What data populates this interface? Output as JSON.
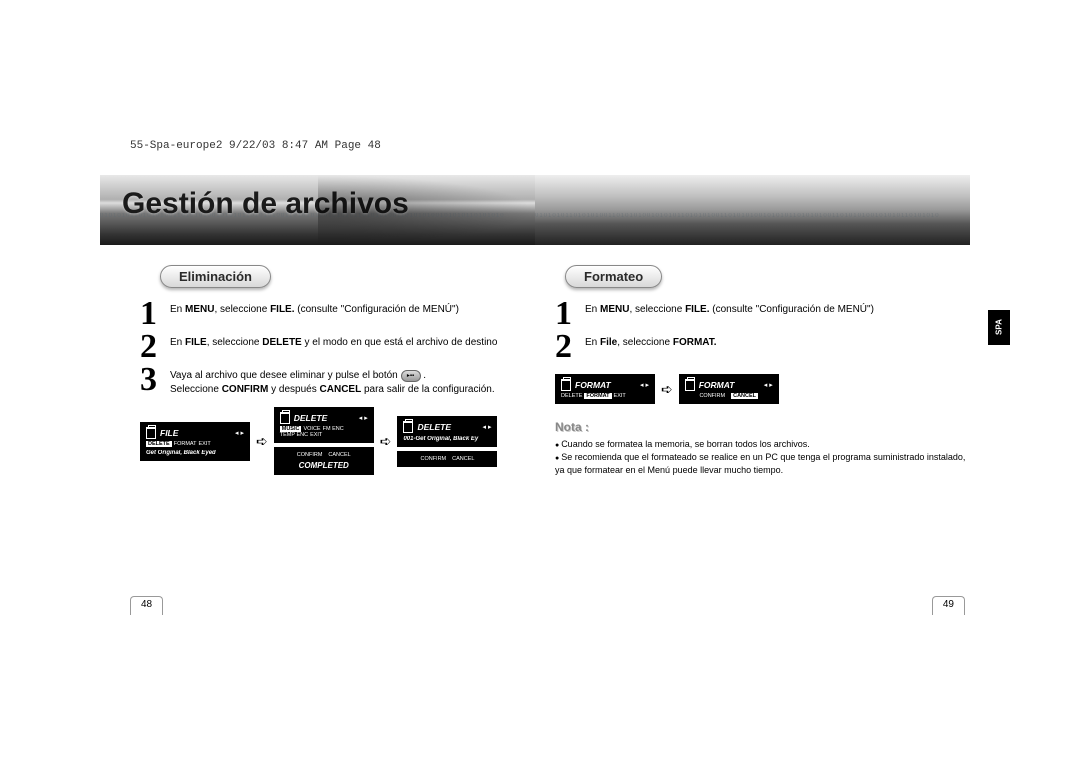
{
  "print_meta": "55-Spa-europe2  9/22/03  8:47 AM  Page 48",
  "banner_title": "Gestión de archivos",
  "left": {
    "pill": "Eliminación",
    "steps": [
      {
        "num": "1",
        "html": "En <b>MENU</b>, seleccione <b>FILE.</b> (consulte \"Configuración de MENÚ\")"
      },
      {
        "num": "2",
        "html": "En <b>FILE</b>, seleccione <b>DELETE</b>  y el modo en que está el archivo de destino"
      },
      {
        "num": "3",
        "html": "Vaya al archivo que desee eliminar y pulse el botón <span class='btn-inline' data-name='play-pause-icon' data-interactable='false'>▸▪▪</span> .<br>Seleccione <b>CONFIRM</b> y después <b>CANCEL</b> para salir de la configuración."
      }
    ],
    "screens": {
      "a": {
        "title": "FILE",
        "row": [
          "DELETE",
          "FORMAT",
          "EXIT"
        ],
        "foot": "Get Original, Black Eyed"
      },
      "b_top": {
        "title": "DELETE",
        "row": [
          "MUSIC",
          "VOICE",
          "FM ENC"
        ],
        "row2": [
          "TEMP ENC",
          "EXIT"
        ]
      },
      "b_bot": {
        "row": [
          "CONFIRM",
          "CANCEL"
        ],
        "foot": "COMPLETED"
      },
      "c_top": {
        "title": "DELETE",
        "foot": "001-Get Original, Black Ey"
      },
      "c_bot": {
        "row": [
          "CONFIRM",
          "CANCEL"
        ]
      }
    },
    "page_num": "48"
  },
  "right": {
    "pill": "Formateo",
    "steps": [
      {
        "num": "1",
        "html": "En <b>MENU</b>, seleccione <b>FILE.</b> (consulte \"Configuración de MENÚ\")"
      },
      {
        "num": "2",
        "html": "En <b>File</b>, seleccione <b>FORMAT.</b>"
      }
    ],
    "screens": {
      "a": {
        "title": "FORMAT",
        "row": [
          "DELETE",
          "FORMAT",
          "EXIT"
        ]
      },
      "b": {
        "title": "FORMAT",
        "row": [
          "CONFIRM",
          "CANCEL"
        ]
      }
    },
    "note_label": "Nota :",
    "notes": [
      "Cuando se formatea la memoria, se borran todos los archivos.",
      "Se recomienda que el formateado se realice en un PC que tenga el programa suministrado instalado, ya que formatear en el Menú puede llevar mucho tiempo."
    ],
    "side_tab": "SPA",
    "page_num": "49"
  },
  "colors": {
    "pill_text": "#2a2a2a",
    "banner_text": "#1a1a1a"
  }
}
